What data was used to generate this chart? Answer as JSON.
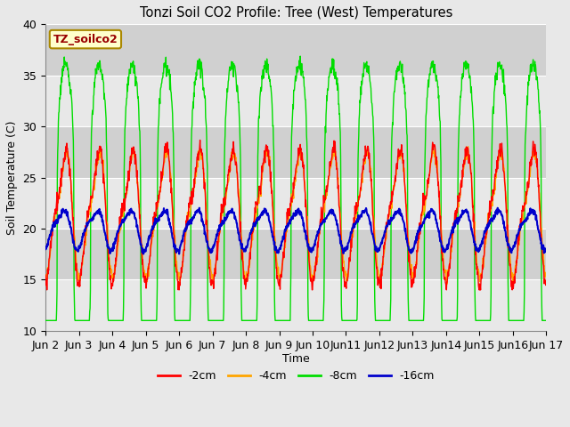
{
  "title": "Tonzi Soil CO2 Profile: Tree (West) Temperatures",
  "xlabel": "Time",
  "ylabel": "Soil Temperature (C)",
  "ylim": [
    10,
    40
  ],
  "xlim": [
    0,
    360
  ],
  "fig_bg_color": "#e8e8e8",
  "plot_bg_color": "#dcdcdc",
  "colors": {
    "2cm": "#ff0000",
    "4cm": "#ffa500",
    "8cm": "#00dd00",
    "16cm": "#0000cc"
  },
  "legend_labels": [
    "-2cm",
    "-4cm",
    "-8cm",
    "-16cm"
  ],
  "annotation_text": "TZ_soilco2",
  "annotation_color": "#990000",
  "annotation_bg": "#ffffcc",
  "annotation_edge": "#aa8800",
  "xtick_labels": [
    "Jun 2",
    "Jun 3",
    "Jun 4",
    "Jun 5",
    "Jun 6",
    "Jun 7",
    "Jun 8",
    "Jun 9",
    "Jun 10",
    "Jun11",
    "Jun12",
    "Jun13",
    "Jun14",
    "Jun15",
    "Jun16",
    "Jun 17"
  ],
  "xtick_positions": [
    0,
    24,
    48,
    72,
    96,
    120,
    144,
    168,
    192,
    216,
    240,
    264,
    288,
    312,
    336,
    360
  ],
  "ytick_values": [
    10,
    15,
    20,
    25,
    30,
    35,
    40
  ]
}
